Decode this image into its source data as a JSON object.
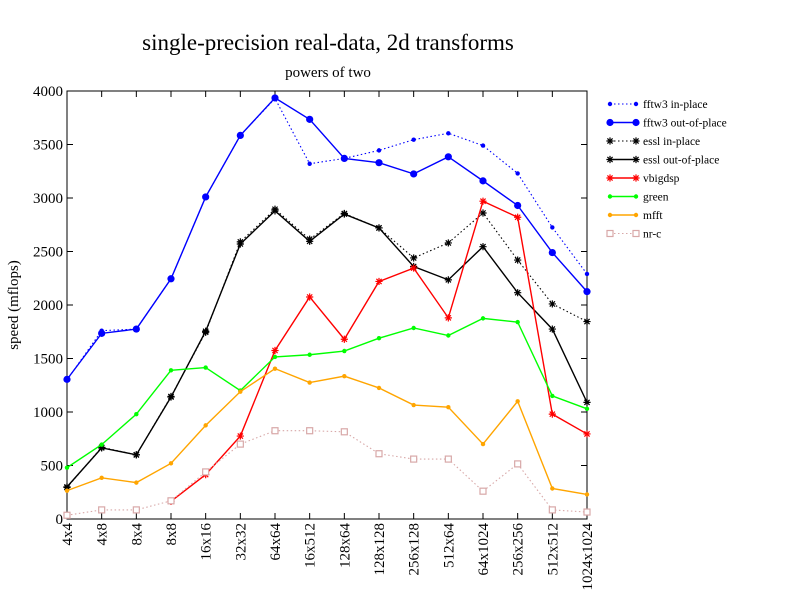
{
  "chart_data": {
    "type": "line",
    "title": "single-precision real-data, 2d transforms",
    "subtitle": "powers of two",
    "xlabel": "",
    "ylabel": "speed (mflops)",
    "ylim": [
      0,
      4000
    ],
    "yticks": [
      0,
      500,
      1000,
      1500,
      2000,
      2500,
      3000,
      3500,
      4000
    ],
    "legend_position": "right",
    "categories": [
      "4x4",
      "4x8",
      "8x4",
      "8x8",
      "16x16",
      "32x32",
      "64x64",
      "16x512",
      "128x64",
      "128x128",
      "256x128",
      "512x64",
      "64x1024",
      "256x256",
      "512x512",
      "1024x1024"
    ],
    "series": [
      {
        "name": "fftw3 in-place",
        "color": "#0000ff",
        "dash": "dotted",
        "marker": "dot-small",
        "values": [
          1300,
          1760,
          1775,
          2245,
          3010,
          3585,
          3930,
          3320,
          3370,
          3445,
          3545,
          3605,
          3490,
          3230,
          2725,
          2290
        ]
      },
      {
        "name": "fftw3 out-of-place",
        "color": "#0000ff",
        "dash": "solid",
        "marker": "dot-large",
        "values": [
          1305,
          1735,
          1775,
          2245,
          3010,
          3585,
          3935,
          3735,
          3370,
          3330,
          3225,
          3385,
          3160,
          2930,
          2490,
          2125
        ]
      },
      {
        "name": "essl in-place",
        "color": "#000000",
        "dash": "dotted",
        "marker": "star",
        "values": [
          295,
          670,
          600,
          1145,
          1745,
          2590,
          2895,
          2615,
          2855,
          2720,
          2440,
          2580,
          2860,
          2420,
          2010,
          1845
        ]
      },
      {
        "name": "essl out-of-place",
        "color": "#000000",
        "dash": "solid",
        "marker": "star",
        "values": [
          300,
          665,
          600,
          1140,
          1755,
          2570,
          2880,
          2595,
          2850,
          2720,
          2360,
          2235,
          2545,
          2115,
          1775,
          1090
        ]
      },
      {
        "name": "vbigdsp",
        "color": "#ff0000",
        "dash": "solid",
        "marker": "star",
        "values": [
          null,
          null,
          null,
          165,
          415,
          775,
          1575,
          2075,
          1680,
          2220,
          2345,
          1880,
          2970,
          2820,
          980,
          795
        ]
      },
      {
        "name": "green",
        "color": "#00ff00",
        "dash": "solid",
        "marker": "dot-small",
        "values": [
          480,
          695,
          980,
          1390,
          1415,
          1200,
          1515,
          1535,
          1570,
          1690,
          1785,
          1715,
          1875,
          1840,
          1150,
          1030
        ]
      },
      {
        "name": "mfft",
        "color": "#ffa500",
        "dash": "solid",
        "marker": "dot-small",
        "values": [
          265,
          385,
          340,
          520,
          875,
          1190,
          1405,
          1275,
          1335,
          1225,
          1065,
          1045,
          700,
          1100,
          285,
          230
        ]
      },
      {
        "name": "nr-c",
        "color": "#d8a8a8",
        "dash": "dotted",
        "marker": "square",
        "values": [
          35,
          85,
          85,
          170,
          440,
          700,
          825,
          825,
          815,
          610,
          560,
          560,
          260,
          515,
          85,
          65
        ]
      }
    ]
  }
}
